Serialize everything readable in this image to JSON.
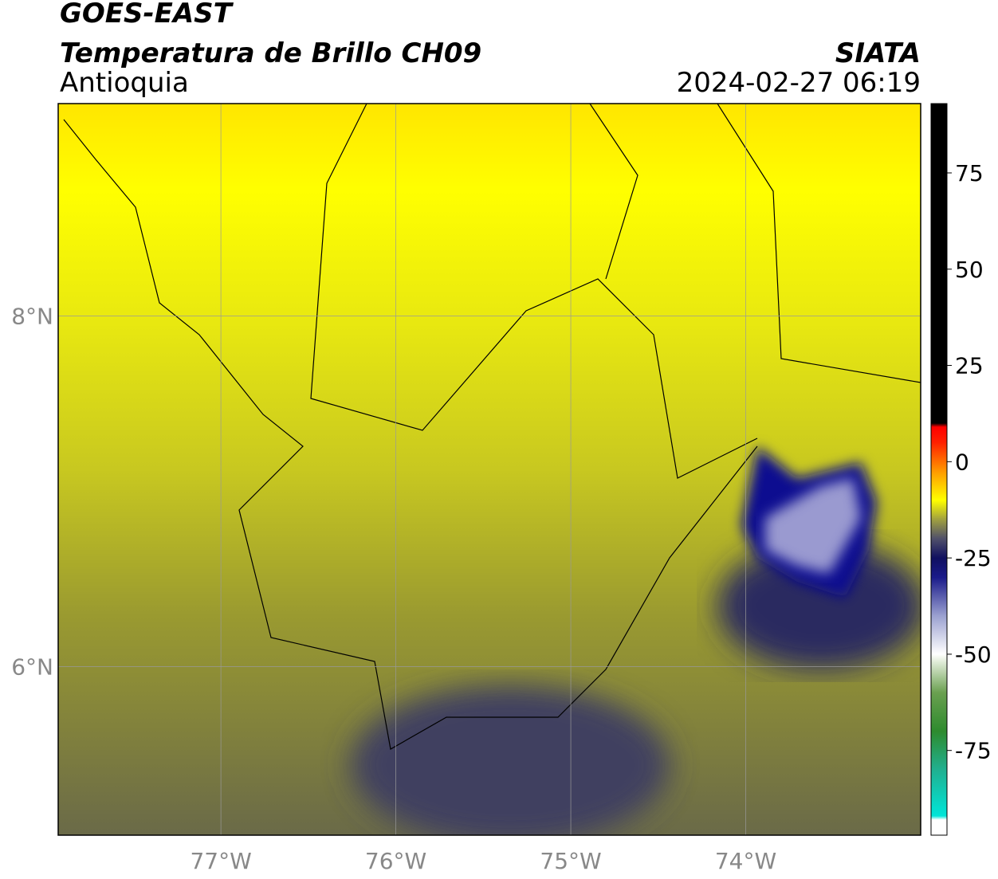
{
  "header": {
    "title": "GOES-EAST",
    "subtitle": "Temperatura de Brillo CH09",
    "region": "Antioquia",
    "source": "SIATA",
    "datetime": "2024-02-27 06:19"
  },
  "map": {
    "xlim": [
      -77.93,
      -73.0
    ],
    "ylim": [
      5.04,
      9.21
    ],
    "xticks": [
      {
        "value": -77,
        "label": "77°W"
      },
      {
        "value": -76,
        "label": "76°W"
      },
      {
        "value": -75,
        "label": "75°W"
      },
      {
        "value": -74,
        "label": "74°W"
      }
    ],
    "yticks": [
      {
        "value": 6,
        "label": "6°N"
      },
      {
        "value": 8,
        "label": "8°N"
      }
    ],
    "grid": true
  },
  "colorbar": {
    "lim": [
      -97,
      93
    ],
    "ticks": [
      -75,
      -50,
      -25,
      0,
      25,
      50,
      75
    ],
    "stops": [
      {
        "value": -97,
        "color": "#ffffff"
      },
      {
        "value": -93,
        "color": "#ffffff"
      },
      {
        "value": -92,
        "color": "#00e5d8"
      },
      {
        "value": -80,
        "color": "#20b090"
      },
      {
        "value": -70,
        "color": "#2e8b2e"
      },
      {
        "value": -60,
        "color": "#6aa050"
      },
      {
        "value": -52,
        "color": "#e0ecd8"
      },
      {
        "value": -50,
        "color": "#ffffff"
      },
      {
        "value": -40,
        "color": "#9aa0d0"
      },
      {
        "value": -30,
        "color": "#1a1a8a"
      },
      {
        "value": -25,
        "color": "#101060"
      },
      {
        "value": -20,
        "color": "#50506a"
      },
      {
        "value": -15,
        "color": "#a0a040"
      },
      {
        "value": -10,
        "color": "#ffff00"
      },
      {
        "value": -3,
        "color": "#ffa000"
      },
      {
        "value": 5,
        "color": "#ff2000"
      },
      {
        "value": 9,
        "color": "#ff0000"
      },
      {
        "value": 10,
        "color": "#000000"
      },
      {
        "value": 93,
        "color": "#000000"
      }
    ]
  }
}
